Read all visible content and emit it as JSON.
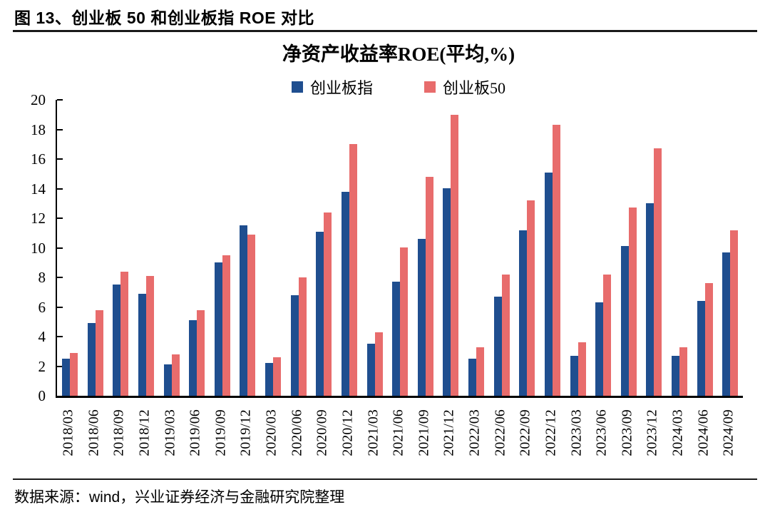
{
  "header": {
    "title": "图 13、创业板 50 和创业板指 ROE 对比"
  },
  "footer": {
    "source": "数据来源：wind，兴业证券经济与金融研究院整理"
  },
  "chart_data": {
    "type": "bar",
    "title": "净资产收益率ROE(平均,%)",
    "xlabel": "",
    "ylabel": "",
    "ylim": [
      0,
      20
    ],
    "y_ticks": [
      0,
      2,
      4,
      6,
      8,
      10,
      12,
      14,
      16,
      18,
      20
    ],
    "grid": false,
    "legend_position": "top",
    "background": "#ffffff",
    "axis_color": "#000000",
    "categories": [
      "2018/03",
      "2018/06",
      "2018/09",
      "2018/12",
      "2019/03",
      "2019/06",
      "2019/09",
      "2019/12",
      "2020/03",
      "2020/06",
      "2020/09",
      "2020/12",
      "2021/03",
      "2021/06",
      "2021/09",
      "2021/12",
      "2022/03",
      "2022/06",
      "2022/09",
      "2022/12",
      "2023/03",
      "2023/06",
      "2023/09",
      "2023/12",
      "2024/03",
      "2024/06",
      "2024/09"
    ],
    "series": [
      {
        "name": "创业板指",
        "color": "#1F4E8F",
        "values": [
          2.5,
          4.9,
          7.5,
          6.9,
          2.1,
          5.1,
          9.0,
          11.5,
          2.2,
          6.8,
          11.1,
          13.8,
          3.5,
          7.7,
          10.6,
          14.0,
          2.5,
          6.7,
          11.2,
          15.1,
          2.7,
          6.3,
          10.1,
          13.0,
          2.7,
          6.4,
          9.7
        ]
      },
      {
        "name": "创业板50",
        "color": "#E86C6C",
        "values": [
          2.9,
          5.8,
          8.4,
          8.1,
          2.8,
          5.8,
          9.5,
          10.9,
          2.6,
          8.0,
          12.4,
          17.0,
          4.3,
          10.0,
          14.8,
          19.0,
          3.3,
          8.2,
          13.2,
          18.3,
          3.6,
          8.2,
          12.7,
          16.7,
          3.3,
          7.6,
          11.2
        ]
      }
    ]
  }
}
